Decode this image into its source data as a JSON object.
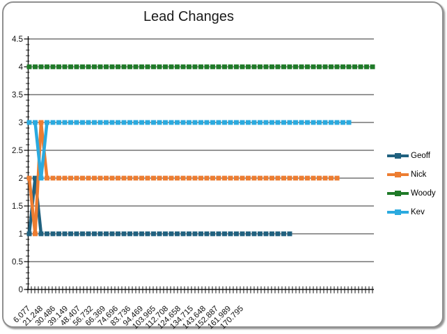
{
  "title": "Lead Changes",
  "legend": {
    "position": "right",
    "items": [
      {
        "label": "Geoff",
        "color": "#20617f"
      },
      {
        "label": "Nick",
        "color": "#ed7d31"
      },
      {
        "label": "Woody",
        "color": "#1f7a28"
      },
      {
        "label": "Kev",
        "color": "#2baadf"
      }
    ]
  },
  "chart_data": {
    "type": "line",
    "title": "Lead Changes",
    "xlabel": "",
    "ylabel": "",
    "ylim": [
      0,
      4.5
    ],
    "y_major_step": 0.5,
    "y_minor_step": 0.1,
    "grid": "horizontal major gridlines on",
    "legend_position": "right",
    "y_ticks": [
      "4.5",
      "4",
      "3.5",
      "3",
      "2.5",
      "2",
      "1.5",
      "1",
      "0.5",
      "0"
    ],
    "x_tick_labels": [
      "6.077",
      "21.248",
      "30.486",
      "39.149",
      "48.407",
      "56.732",
      "66.369",
      "74.696",
      "83.736",
      "94.469",
      "103.965",
      "112.708",
      "124.658",
      "134.715",
      "143.648",
      "152.887",
      "161.989",
      "170.795"
    ],
    "series": [
      {
        "name": "Geoff",
        "color": "#20617f",
        "values_runs": [
          [
            1,
            1
          ],
          [
            2,
            1
          ],
          [
            1,
            43
          ]
        ]
      },
      {
        "name": "Nick",
        "color": "#ed7d31",
        "values_runs": [
          [
            2,
            1
          ],
          [
            1,
            1
          ],
          [
            3,
            1
          ],
          [
            2,
            50
          ]
        ]
      },
      {
        "name": "Woody",
        "color": "#1f7a28",
        "values_runs": [
          [
            4,
            59
          ]
        ]
      },
      {
        "name": "Kev",
        "color": "#2baadf",
        "values_runs": [
          [
            3,
            2
          ],
          [
            2,
            1
          ],
          [
            3,
            52
          ]
        ]
      }
    ],
    "series_note": "values are race positions per timing point; 1=runs of [value,count]"
  }
}
